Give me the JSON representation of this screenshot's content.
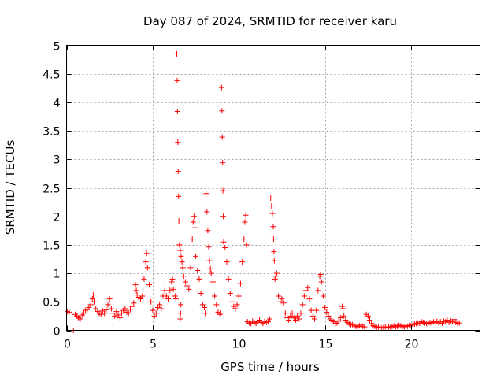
{
  "chart_data": {
    "type": "scatter",
    "title": "Day 087 of 2024, SRMTID for receiver karu",
    "xlabel": "GPS time / hours",
    "ylabel": "SRMTID / TECUs",
    "xlim": [
      0,
      24
    ],
    "ylim": [
      0,
      5
    ],
    "x_ticks": [
      0,
      5,
      10,
      15,
      20
    ],
    "x_tick_labels": [
      "0",
      "5",
      "10",
      "15",
      "20"
    ],
    "y_ticks": [
      0,
      0.5,
      1,
      1.5,
      2,
      2.5,
      3,
      3.5,
      4,
      4.5,
      5
    ],
    "y_tick_labels": [
      "0",
      "0.5",
      "1",
      "1.5",
      "2",
      "2.5",
      "3",
      "3.5",
      "4",
      "4.5",
      "5"
    ],
    "grid": true,
    "marker": "plus",
    "marker_color": "#ff0000",
    "series": [
      {
        "name": "SRMTID",
        "points": [
          [
            0.05,
            0.33
          ],
          [
            0.15,
            0.32
          ],
          [
            0.4,
            0.0
          ],
          [
            0.5,
            0.28
          ],
          [
            0.6,
            0.25
          ],
          [
            0.7,
            0.22
          ],
          [
            0.8,
            0.2
          ],
          [
            0.9,
            0.27
          ],
          [
            1.0,
            0.3
          ],
          [
            1.1,
            0.35
          ],
          [
            1.2,
            0.37
          ],
          [
            1.3,
            0.4
          ],
          [
            1.4,
            0.45
          ],
          [
            1.5,
            0.55
          ],
          [
            1.55,
            0.62
          ],
          [
            1.6,
            0.5
          ],
          [
            1.7,
            0.38
          ],
          [
            1.8,
            0.33
          ],
          [
            1.9,
            0.3
          ],
          [
            2.0,
            0.28
          ],
          [
            2.1,
            0.34
          ],
          [
            2.2,
            0.3
          ],
          [
            2.3,
            0.36
          ],
          [
            2.4,
            0.45
          ],
          [
            2.5,
            0.55
          ],
          [
            2.6,
            0.38
          ],
          [
            2.7,
            0.3
          ],
          [
            2.8,
            0.25
          ],
          [
            2.9,
            0.33
          ],
          [
            3.0,
            0.27
          ],
          [
            3.1,
            0.22
          ],
          [
            3.2,
            0.3
          ],
          [
            3.3,
            0.35
          ],
          [
            3.4,
            0.38
          ],
          [
            3.5,
            0.32
          ],
          [
            3.6,
            0.3
          ],
          [
            3.7,
            0.37
          ],
          [
            3.8,
            0.42
          ],
          [
            3.9,
            0.48
          ],
          [
            4.0,
            0.8
          ],
          [
            4.05,
            0.7
          ],
          [
            4.1,
            0.62
          ],
          [
            4.2,
            0.58
          ],
          [
            4.3,
            0.55
          ],
          [
            4.4,
            0.6
          ],
          [
            4.5,
            0.9
          ],
          [
            4.6,
            1.2
          ],
          [
            4.65,
            1.35
          ],
          [
            4.7,
            1.1
          ],
          [
            4.8,
            0.8
          ],
          [
            4.9,
            0.5
          ],
          [
            5.0,
            0.35
          ],
          [
            5.1,
            0.25
          ],
          [
            5.2,
            0.3
          ],
          [
            5.3,
            0.4
          ],
          [
            5.4,
            0.45
          ],
          [
            5.5,
            0.38
          ],
          [
            5.6,
            0.6
          ],
          [
            5.7,
            0.7
          ],
          [
            5.8,
            0.6
          ],
          [
            5.9,
            0.55
          ],
          [
            6.0,
            0.7
          ],
          [
            6.1,
            0.85
          ],
          [
            6.15,
            0.9
          ],
          [
            6.2,
            0.72
          ],
          [
            6.3,
            0.6
          ],
          [
            6.35,
            0.55
          ],
          [
            6.4,
            4.85
          ],
          [
            6.42,
            4.38
          ],
          [
            6.44,
            3.84
          ],
          [
            6.46,
            3.3
          ],
          [
            6.48,
            2.79
          ],
          [
            6.5,
            2.35
          ],
          [
            6.52,
            1.92
          ],
          [
            6.55,
            1.5
          ],
          [
            6.6,
            1.4
          ],
          [
            6.65,
            1.3
          ],
          [
            6.6,
            0.2
          ],
          [
            6.62,
            0.3
          ],
          [
            6.64,
            0.45
          ],
          [
            6.7,
            1.2
          ],
          [
            6.75,
            1.1
          ],
          [
            6.8,
            0.95
          ],
          [
            6.9,
            0.85
          ],
          [
            7.0,
            0.78
          ],
          [
            7.1,
            0.72
          ],
          [
            7.2,
            1.1
          ],
          [
            7.3,
            1.6
          ],
          [
            7.35,
            1.9
          ],
          [
            7.4,
            2.0
          ],
          [
            7.45,
            1.8
          ],
          [
            7.5,
            1.3
          ],
          [
            7.6,
            1.05
          ],
          [
            7.7,
            0.9
          ],
          [
            7.8,
            0.65
          ],
          [
            7.9,
            0.45
          ],
          [
            8.0,
            0.4
          ],
          [
            8.05,
            0.3
          ],
          [
            8.1,
            2.4
          ],
          [
            8.15,
            2.08
          ],
          [
            8.2,
            1.75
          ],
          [
            8.25,
            1.46
          ],
          [
            8.3,
            1.22
          ],
          [
            8.35,
            1.08
          ],
          [
            8.4,
            1.0
          ],
          [
            8.5,
            0.85
          ],
          [
            8.6,
            0.6
          ],
          [
            8.7,
            0.45
          ],
          [
            8.8,
            0.32
          ],
          [
            8.9,
            0.28
          ],
          [
            8.95,
            0.3
          ],
          [
            9.0,
            4.26
          ],
          [
            9.02,
            3.85
          ],
          [
            9.04,
            3.39
          ],
          [
            9.06,
            2.94
          ],
          [
            9.08,
            2.45
          ],
          [
            9.1,
            2.0
          ],
          [
            9.12,
            1.55
          ],
          [
            9.2,
            1.45
          ],
          [
            9.3,
            1.2
          ],
          [
            9.4,
            0.9
          ],
          [
            9.5,
            0.65
          ],
          [
            9.6,
            0.5
          ],
          [
            9.7,
            0.42
          ],
          [
            9.8,
            0.38
          ],
          [
            9.9,
            0.45
          ],
          [
            10.0,
            0.6
          ],
          [
            10.1,
            0.82
          ],
          [
            10.2,
            1.2
          ],
          [
            10.3,
            1.6
          ],
          [
            10.35,
            1.9
          ],
          [
            10.4,
            2.02
          ],
          [
            10.45,
            1.5
          ],
          [
            10.5,
            0.15
          ],
          [
            10.6,
            0.13
          ],
          [
            10.7,
            0.12
          ],
          [
            10.8,
            0.16
          ],
          [
            10.9,
            0.14
          ],
          [
            11.0,
            0.12
          ],
          [
            11.1,
            0.15
          ],
          [
            11.2,
            0.18
          ],
          [
            11.3,
            0.14
          ],
          [
            11.4,
            0.12
          ],
          [
            11.5,
            0.16
          ],
          [
            11.6,
            0.14
          ],
          [
            11.7,
            0.15
          ],
          [
            11.8,
            0.2
          ],
          [
            11.85,
            2.32
          ],
          [
            11.9,
            2.18
          ],
          [
            11.95,
            2.05
          ],
          [
            12.0,
            1.82
          ],
          [
            12.02,
            1.6
          ],
          [
            12.04,
            1.38
          ],
          [
            12.06,
            1.22
          ],
          [
            12.1,
            0.9
          ],
          [
            12.15,
            0.95
          ],
          [
            12.2,
            1.0
          ],
          [
            12.3,
            0.6
          ],
          [
            12.4,
            0.5
          ],
          [
            12.5,
            0.55
          ],
          [
            12.6,
            0.48
          ],
          [
            12.7,
            0.3
          ],
          [
            12.8,
            0.22
          ],
          [
            12.9,
            0.18
          ],
          [
            13.0,
            0.25
          ],
          [
            13.1,
            0.3
          ],
          [
            13.2,
            0.22
          ],
          [
            13.3,
            0.18
          ],
          [
            13.4,
            0.25
          ],
          [
            13.5,
            0.2
          ],
          [
            13.6,
            0.3
          ],
          [
            13.7,
            0.45
          ],
          [
            13.8,
            0.6
          ],
          [
            13.9,
            0.7
          ],
          [
            14.0,
            0.75
          ],
          [
            14.1,
            0.55
          ],
          [
            14.2,
            0.35
          ],
          [
            14.3,
            0.25
          ],
          [
            14.4,
            0.2
          ],
          [
            14.5,
            0.35
          ],
          [
            14.6,
            0.7
          ],
          [
            14.7,
            0.95
          ],
          [
            14.75,
            0.98
          ],
          [
            14.8,
            0.85
          ],
          [
            14.9,
            0.6
          ],
          [
            15.0,
            0.4
          ],
          [
            15.1,
            0.32
          ],
          [
            15.2,
            0.25
          ],
          [
            15.3,
            0.2
          ],
          [
            15.4,
            0.18
          ],
          [
            15.5,
            0.15
          ],
          [
            15.6,
            0.12
          ],
          [
            15.7,
            0.13
          ],
          [
            15.8,
            0.16
          ],
          [
            15.9,
            0.22
          ],
          [
            16.0,
            0.42
          ],
          [
            16.05,
            0.38
          ],
          [
            16.1,
            0.25
          ],
          [
            16.2,
            0.18
          ],
          [
            16.3,
            0.14
          ],
          [
            16.4,
            0.12
          ],
          [
            16.5,
            0.1
          ],
          [
            16.6,
            0.1
          ],
          [
            16.7,
            0.08
          ],
          [
            16.8,
            0.07
          ],
          [
            16.9,
            0.06
          ],
          [
            17.0,
            0.08
          ],
          [
            17.1,
            0.1
          ],
          [
            17.2,
            0.07
          ],
          [
            17.3,
            0.06
          ],
          [
            17.4,
            0.28
          ],
          [
            17.5,
            0.25
          ],
          [
            17.6,
            0.18
          ],
          [
            17.7,
            0.12
          ],
          [
            17.8,
            0.08
          ],
          [
            17.9,
            0.07
          ],
          [
            18.0,
            0.05
          ],
          [
            18.1,
            0.06
          ],
          [
            18.2,
            0.05
          ],
          [
            18.3,
            0.04
          ],
          [
            18.4,
            0.05
          ],
          [
            18.5,
            0.06
          ],
          [
            18.6,
            0.05
          ],
          [
            18.7,
            0.06
          ],
          [
            18.8,
            0.05
          ],
          [
            18.9,
            0.07
          ],
          [
            19.0,
            0.08
          ],
          [
            19.1,
            0.06
          ],
          [
            19.2,
            0.07
          ],
          [
            19.3,
            0.09
          ],
          [
            19.4,
            0.08
          ],
          [
            19.5,
            0.07
          ],
          [
            19.6,
            0.06
          ],
          [
            19.7,
            0.08
          ],
          [
            19.8,
            0.07
          ],
          [
            19.9,
            0.09
          ],
          [
            20.0,
            0.08
          ],
          [
            20.1,
            0.1
          ],
          [
            20.2,
            0.11
          ],
          [
            20.3,
            0.12
          ],
          [
            20.4,
            0.13
          ],
          [
            20.5,
            0.12
          ],
          [
            20.6,
            0.15
          ],
          [
            20.7,
            0.14
          ],
          [
            20.8,
            0.13
          ],
          [
            20.9,
            0.12
          ],
          [
            21.0,
            0.13
          ],
          [
            21.1,
            0.14
          ],
          [
            21.2,
            0.12
          ],
          [
            21.3,
            0.15
          ],
          [
            21.4,
            0.14
          ],
          [
            21.5,
            0.16
          ],
          [
            21.6,
            0.13
          ],
          [
            21.7,
            0.15
          ],
          [
            21.8,
            0.12
          ],
          [
            21.9,
            0.16
          ],
          [
            22.0,
            0.15
          ],
          [
            22.1,
            0.18
          ],
          [
            22.2,
            0.14
          ],
          [
            22.3,
            0.17
          ],
          [
            22.4,
            0.15
          ],
          [
            22.5,
            0.19
          ],
          [
            22.6,
            0.14
          ],
          [
            22.7,
            0.12
          ],
          [
            22.8,
            0.13
          ]
        ]
      }
    ]
  }
}
